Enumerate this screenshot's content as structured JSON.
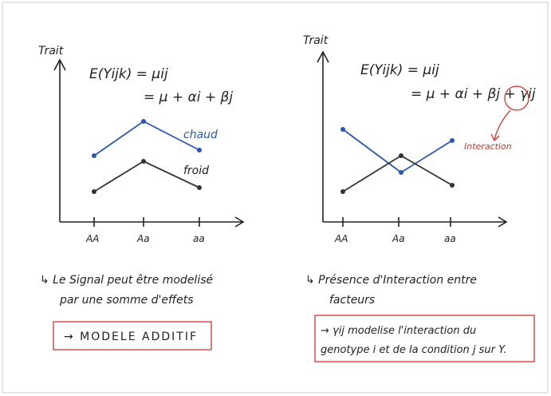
{
  "left": {
    "y_label": "Trait",
    "formula_1": "E(Yijk) = μij",
    "formula_2": "= μ + αi + βj",
    "series": [
      "chaud",
      "froid"
    ],
    "categories": [
      "AA",
      "Aa",
      "aa"
    ],
    "note_1": "↳ Le Signal peut être modelisé",
    "note_2": "par une somme d'effets",
    "box": "→ MODELE ADDITIF"
  },
  "right": {
    "y_label": "Trait",
    "formula_1": "E(Yijk) = μij",
    "formula_2": "= μ + αi + βj + γij",
    "annotation": "Interaction",
    "categories": [
      "AA",
      "Aa",
      "aa"
    ],
    "note_1": "↳ Présence d'Interaction entre",
    "note_2": "facteurs",
    "box_1": "→ γij modelise l'interaction du",
    "box_2": "genotype i et de la condition j sur Y."
  }
}
